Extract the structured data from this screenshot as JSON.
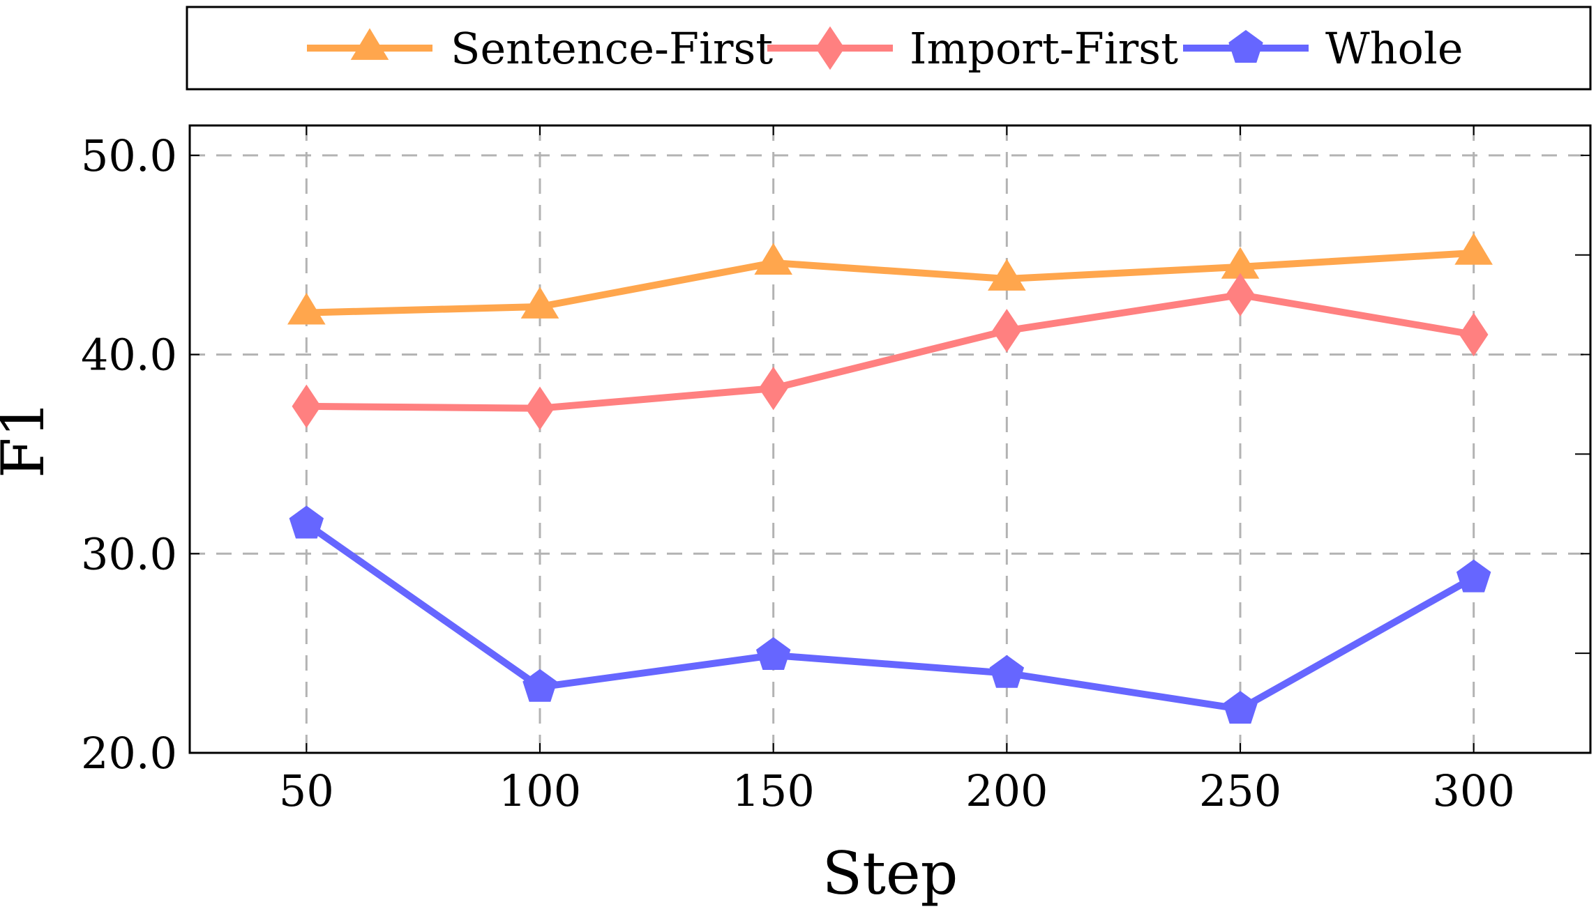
{
  "chart_data": {
    "type": "line",
    "title": "",
    "xlabel": "Step",
    "ylabel": "F1",
    "x": [
      50,
      100,
      150,
      200,
      250,
      300
    ],
    "xticks": [
      "50",
      "100",
      "150",
      "200",
      "250",
      "300"
    ],
    "yticks": [
      "20.0",
      "30.0",
      "40.0",
      "50.0"
    ],
    "ytick_values": [
      20,
      30,
      40,
      50
    ],
    "xlim": [
      25,
      325
    ],
    "ylim": [
      20,
      51.5
    ],
    "grid": true,
    "legend_position": "top",
    "series": [
      {
        "name": "Sentence-First",
        "color": "#FFA64D",
        "marker": "triangle",
        "values": [
          42.1,
          42.4,
          44.6,
          43.8,
          44.4,
          45.1
        ]
      },
      {
        "name": "Import-First",
        "color": "#FF8080",
        "marker": "diamond",
        "values": [
          37.4,
          37.3,
          38.3,
          41.2,
          43.0,
          41.0
        ]
      },
      {
        "name": "Whole",
        "color": "#6666FF",
        "marker": "pentagon",
        "values": [
          31.5,
          23.3,
          24.9,
          24.0,
          22.2,
          28.8
        ]
      }
    ]
  }
}
